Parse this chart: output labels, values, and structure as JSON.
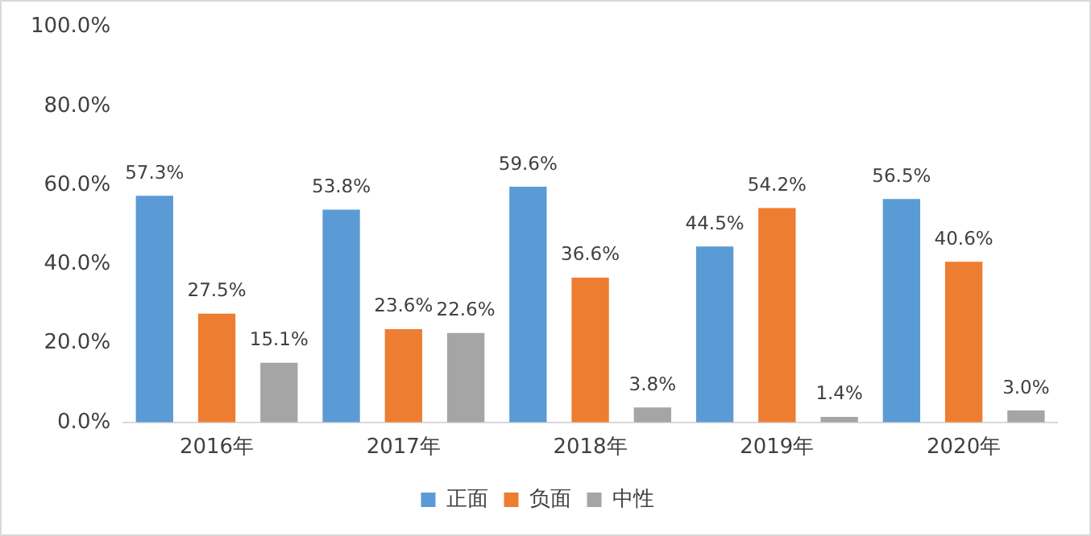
{
  "chart_data": {
    "type": "bar",
    "categories": [
      "2016年",
      "2017年",
      "2018年",
      "2019年",
      "2020年"
    ],
    "series": [
      {
        "name": "正面",
        "color": "#5b9bd5",
        "values": [
          57.3,
          53.8,
          59.6,
          44.5,
          56.5
        ],
        "value_labels": [
          "57.3%",
          "53.8%",
          "59.6%",
          "44.5%",
          "56.5%"
        ]
      },
      {
        "name": "负面",
        "color": "#ed7d31",
        "values": [
          27.5,
          23.6,
          36.6,
          54.2,
          40.6
        ],
        "value_labels": [
          "27.5%",
          "23.6%",
          "36.6%",
          "54.2%",
          "40.6%"
        ]
      },
      {
        "name": "中性",
        "color": "#a5a5a5",
        "values": [
          15.1,
          22.6,
          3.8,
          1.4,
          3.0
        ],
        "value_labels": [
          "15.1%",
          "22.6%",
          "3.8%",
          "1.4%",
          "3.0%"
        ]
      }
    ],
    "ylim": [
      0,
      100
    ],
    "yticks": [
      {
        "value": 0,
        "label": "0.0%"
      },
      {
        "value": 20,
        "label": "20.0%"
      },
      {
        "value": 40,
        "label": "40.0%"
      },
      {
        "value": 60,
        "label": "60.0%"
      },
      {
        "value": 80,
        "label": "80.0%"
      },
      {
        "value": 100,
        "label": "100.0%"
      }
    ],
    "grid": false,
    "legend": "bottom"
  }
}
